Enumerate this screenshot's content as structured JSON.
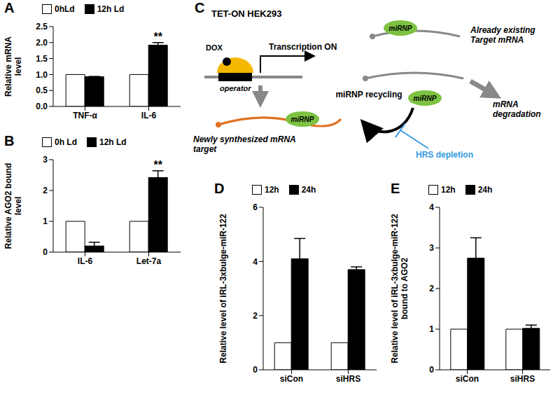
{
  "chart_data": [
    {
      "type": "bar",
      "title": "A",
      "ylabel": "Relative mRNA level",
      "categories": [
        "TNF-α",
        "IL-6"
      ],
      "series": [
        {
          "name": "0hLd",
          "color": "#ffffff",
          "values": [
            1,
            1
          ]
        },
        {
          "name": "12h Ld",
          "color": "#000000",
          "values": [
            0.93,
            1.92
          ],
          "errors": [
            0.01,
            0.08
          ]
        }
      ],
      "ylim": [
        0,
        2.5
      ],
      "yticks": [
        {
          "value": 0,
          "label": "0.0"
        },
        0.5,
        {
          "value": 1,
          "label": "1.0"
        },
        1.5,
        {
          "value": 2,
          "label": "2.0"
        },
        2.5
      ],
      "grid": false,
      "annotations": [
        {
          "text": "**",
          "category": "IL-6",
          "series": "12h Ld"
        }
      ]
    },
    {
      "type": "bar",
      "title": "B",
      "ylabel": "Relative AGO2 bound level",
      "categories": [
        "IL-6",
        "Let-7a"
      ],
      "series": [
        {
          "name": "0h Ld",
          "color": "#ffffff",
          "values": [
            1,
            1
          ]
        },
        {
          "name": "12h Ld",
          "color": "#000000",
          "values": [
            0.2,
            2.42
          ],
          "errors": [
            0.12,
            0.22
          ]
        }
      ],
      "ylim": [
        0,
        3
      ],
      "yticks": [
        0,
        1,
        2,
        3
      ],
      "grid": false,
      "annotations": [
        {
          "text": "**",
          "category": "Let-7a",
          "series": "12h Ld"
        }
      ]
    },
    {
      "type": "bar",
      "title": "D",
      "ylabel": "Relative level of iRL-3xbulge-miR-122",
      "categories": [
        "siCon",
        "siHRS"
      ],
      "series": [
        {
          "name": "12h",
          "color": "#ffffff",
          "values": [
            1,
            1
          ]
        },
        {
          "name": "24h",
          "color": "#000000",
          "values": [
            4.1,
            3.7
          ],
          "errors": [
            0.75,
            0.1
          ]
        }
      ],
      "ylim": [
        0,
        6
      ],
      "yticks": [
        0,
        2,
        4,
        6
      ],
      "grid": false
    },
    {
      "type": "bar",
      "title": "E",
      "ylabel": "Relative level of iRL-3xbulge-miR-122 bound to AGO2",
      "categories": [
        "siCon",
        "siHRS"
      ],
      "series": [
        {
          "name": "12h",
          "color": "#ffffff",
          "values": [
            1,
            1
          ]
        },
        {
          "name": "24h",
          "color": "#000000",
          "values": [
            2.75,
            1.02
          ],
          "errors": [
            0.5,
            0.08
          ]
        }
      ],
      "ylim": [
        0,
        4
      ],
      "yticks": [
        0,
        1,
        2,
        3,
        4
      ],
      "grid": false
    }
  ],
  "diagram": {
    "panel": "C",
    "cell_line": "TET-ON HEK293",
    "inducer": "DOX",
    "element": "operator",
    "transcription": "Transcription ON",
    "complex": "miRNP",
    "existing": "Already existing Target mRNA",
    "degradation": "mRNA degradation",
    "new": "Newly synthesized mRNA target",
    "recycling": "miRNP recycling",
    "inhibitor": "HRS depletion"
  }
}
